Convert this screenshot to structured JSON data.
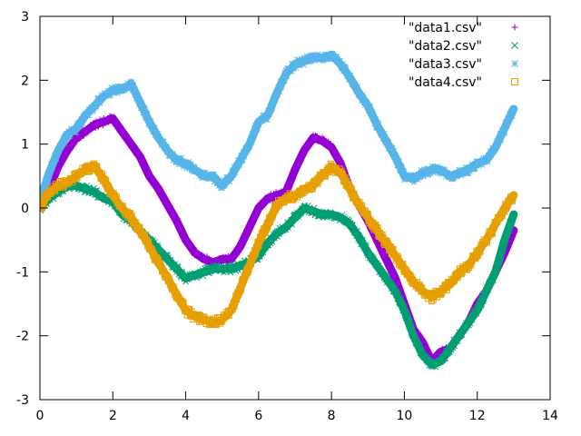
{
  "chart_data": {
    "type": "scatter",
    "xlim": [
      0,
      14
    ],
    "ylim": [
      -3,
      3
    ],
    "x_ticks": [
      0,
      2,
      4,
      6,
      8,
      10,
      12,
      14
    ],
    "y_ticks": [
      -3,
      -2,
      -1,
      0,
      1,
      2,
      3
    ],
    "grid": false,
    "legend_position": "top-right",
    "series": [
      {
        "name": "\"data1.csv\"",
        "marker": "plus",
        "color": "#9400d3",
        "x": [
          0.0,
          0.25,
          0.5,
          0.75,
          1.0,
          1.25,
          1.5,
          1.75,
          2.0,
          2.25,
          2.5,
          2.75,
          3.0,
          3.25,
          3.5,
          3.75,
          4.0,
          4.25,
          4.5,
          4.75,
          5.0,
          5.25,
          5.5,
          5.75,
          6.0,
          6.25,
          6.5,
          6.75,
          7.0,
          7.25,
          7.5,
          7.75,
          8.0,
          8.25,
          8.5,
          8.75,
          9.0,
          9.25,
          9.5,
          9.75,
          10.0,
          10.25,
          10.5,
          10.75,
          11.0,
          11.25,
          11.5,
          11.75,
          12.0,
          12.25,
          12.5,
          12.75,
          13.0
        ],
        "y": [
          0.0,
          0.3,
          0.65,
          0.9,
          1.1,
          1.2,
          1.3,
          1.35,
          1.4,
          1.2,
          1.0,
          0.8,
          0.5,
          0.3,
          0.05,
          -0.2,
          -0.5,
          -0.7,
          -0.8,
          -0.85,
          -0.8,
          -0.8,
          -0.6,
          -0.3,
          0.0,
          0.15,
          0.2,
          0.25,
          0.6,
          0.9,
          1.1,
          1.05,
          0.95,
          0.7,
          0.3,
          0.05,
          -0.2,
          -0.5,
          -0.8,
          -1.1,
          -1.5,
          -1.9,
          -2.1,
          -2.4,
          -2.25,
          -2.2,
          -2.0,
          -1.8,
          -1.5,
          -1.3,
          -1.0,
          -0.7,
          -0.35
        ]
      },
      {
        "name": "\"data2.csv\"",
        "marker": "cross",
        "color": "#009e73",
        "x": [
          0.0,
          0.25,
          0.5,
          0.75,
          1.0,
          1.25,
          1.5,
          1.75,
          2.0,
          2.25,
          2.5,
          2.75,
          3.0,
          3.25,
          3.5,
          3.75,
          4.0,
          4.25,
          4.5,
          4.75,
          5.0,
          5.25,
          5.5,
          5.75,
          6.0,
          6.25,
          6.5,
          6.75,
          7.0,
          7.25,
          7.5,
          7.75,
          8.0,
          8.25,
          8.5,
          8.75,
          9.0,
          9.25,
          9.5,
          9.75,
          10.0,
          10.25,
          10.5,
          10.75,
          11.0,
          11.25,
          11.5,
          11.75,
          12.0,
          12.25,
          12.5,
          12.75,
          13.0
        ],
        "y": [
          0.0,
          0.15,
          0.25,
          0.35,
          0.35,
          0.3,
          0.25,
          0.15,
          0.1,
          -0.1,
          -0.2,
          -0.35,
          -0.5,
          -0.65,
          -0.8,
          -0.95,
          -1.1,
          -1.05,
          -1.0,
          -0.95,
          -0.95,
          -0.95,
          -0.9,
          -0.85,
          -0.75,
          -0.55,
          -0.4,
          -0.3,
          -0.15,
          0.0,
          -0.05,
          -0.1,
          -0.1,
          -0.15,
          -0.25,
          -0.45,
          -0.7,
          -0.9,
          -1.1,
          -1.3,
          -1.6,
          -2.0,
          -2.3,
          -2.45,
          -2.4,
          -2.2,
          -2.0,
          -1.8,
          -1.6,
          -1.3,
          -1.0,
          -0.5,
          -0.1
        ]
      },
      {
        "name": "\"data3.csv\"",
        "marker": "star",
        "color": "#56b4e9",
        "x": [
          0.0,
          0.25,
          0.5,
          0.75,
          1.0,
          1.25,
          1.5,
          1.75,
          2.0,
          2.25,
          2.5,
          2.75,
          3.0,
          3.25,
          3.5,
          3.75,
          4.0,
          4.25,
          4.5,
          4.75,
          5.0,
          5.25,
          5.5,
          5.75,
          6.0,
          6.25,
          6.5,
          6.75,
          7.0,
          7.25,
          7.5,
          7.75,
          8.0,
          8.25,
          8.5,
          8.75,
          9.0,
          9.25,
          9.5,
          9.75,
          10.0,
          10.25,
          10.5,
          10.75,
          11.0,
          11.25,
          11.5,
          11.75,
          12.0,
          12.25,
          12.5,
          12.75,
          13.0
        ],
        "y": [
          0.1,
          0.55,
          0.9,
          1.15,
          1.25,
          1.45,
          1.6,
          1.75,
          1.85,
          1.85,
          1.95,
          1.65,
          1.35,
          1.1,
          0.9,
          0.75,
          0.7,
          0.6,
          0.5,
          0.5,
          0.35,
          0.5,
          0.75,
          1.0,
          1.35,
          1.45,
          1.8,
          2.1,
          2.25,
          2.3,
          2.35,
          2.35,
          2.4,
          2.25,
          2.05,
          1.8,
          1.6,
          1.3,
          1.05,
          0.8,
          0.5,
          0.45,
          0.55,
          0.6,
          0.6,
          0.5,
          0.55,
          0.6,
          0.7,
          0.75,
          0.95,
          1.25,
          1.55
        ]
      },
      {
        "name": "\"data4.csv\"",
        "marker": "square",
        "color": "#e69f00",
        "x": [
          0.0,
          0.25,
          0.5,
          0.75,
          1.0,
          1.25,
          1.5,
          1.75,
          2.0,
          2.25,
          2.5,
          2.75,
          3.0,
          3.25,
          3.5,
          3.75,
          4.0,
          4.25,
          4.5,
          4.75,
          5.0,
          5.25,
          5.5,
          5.75,
          6.0,
          6.25,
          6.5,
          6.75,
          7.0,
          7.25,
          7.5,
          7.75,
          8.0,
          8.25,
          8.5,
          8.75,
          9.0,
          9.25,
          9.5,
          9.75,
          10.0,
          10.25,
          10.5,
          10.75,
          11.0,
          11.25,
          11.5,
          11.75,
          12.0,
          12.25,
          12.5,
          12.75,
          13.0
        ],
        "y": [
          0.0,
          0.25,
          0.35,
          0.4,
          0.5,
          0.6,
          0.65,
          0.45,
          0.2,
          0.0,
          -0.15,
          -0.35,
          -0.6,
          -0.85,
          -1.1,
          -1.35,
          -1.6,
          -1.7,
          -1.75,
          -1.8,
          -1.75,
          -1.6,
          -1.25,
          -0.9,
          -0.55,
          -0.25,
          0.05,
          0.15,
          0.2,
          0.3,
          0.35,
          0.5,
          0.65,
          0.55,
          0.3,
          0.05,
          -0.15,
          -0.35,
          -0.55,
          -0.75,
          -0.95,
          -1.15,
          -1.3,
          -1.4,
          -1.3,
          -1.2,
          -1.0,
          -0.9,
          -0.7,
          -0.5,
          -0.25,
          0.0,
          0.2
        ]
      }
    ]
  }
}
